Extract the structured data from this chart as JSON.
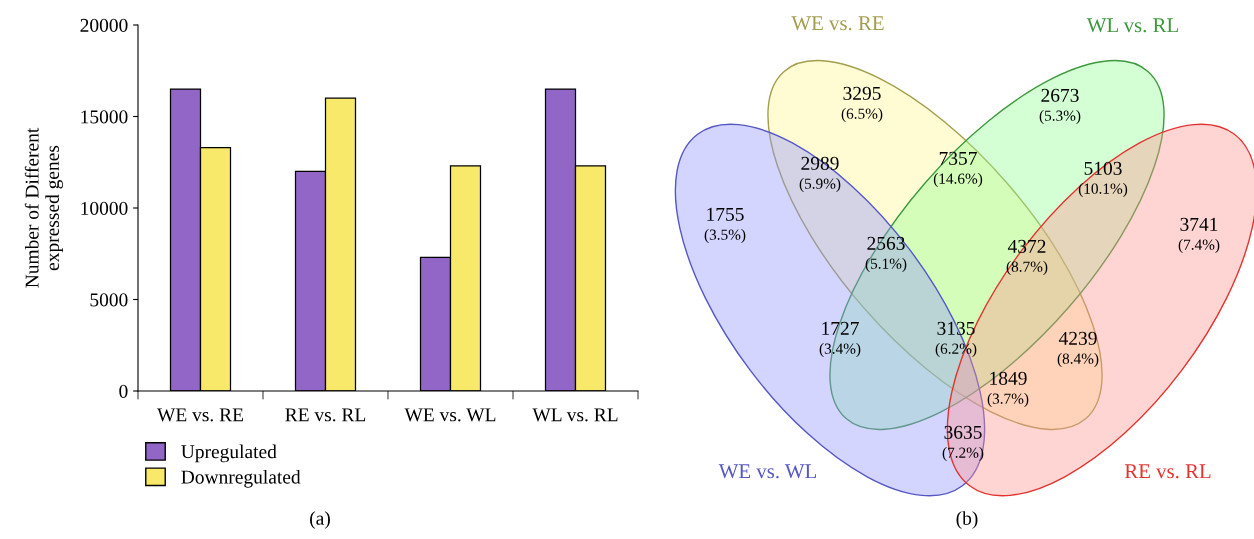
{
  "chart_data": [
    {
      "type": "bar",
      "ylabel": "Number of Different\nexpressed genes",
      "categories": [
        "WE vs. RE",
        "RE vs. RL",
        "WE vs. WL",
        "WL vs. RL"
      ],
      "series": [
        {
          "name": "Upregulated",
          "color": "#9166c6",
          "values": [
            16500,
            12000,
            7300,
            16500
          ]
        },
        {
          "name": "Downregulated",
          "color": "#f8e96a",
          "values": [
            13300,
            16000,
            12300,
            12300
          ]
        }
      ],
      "ylim": [
        0,
        20000
      ],
      "yticks": [
        0,
        5000,
        10000,
        15000,
        20000
      ],
      "grid": false,
      "legend": "bottom left",
      "annotations": [
        "(a)"
      ]
    },
    {
      "type": "other",
      "series": [
        {
          "name": "WE vs. RE",
          "color": "#a39d4e"
        },
        {
          "name": "WL vs. RL",
          "color": "#3d983d"
        },
        {
          "name": "WE vs. WL",
          "color": "#5557c2"
        },
        {
          "name": "RE vs. RL",
          "color": "#e2342f"
        }
      ],
      "annotations": [
        "3295",
        "(6.5%)",
        "2673",
        "(5.3%)",
        "2989",
        "(5.9%)",
        "7357",
        "(14.6%)",
        "5103",
        "(10.1%)",
        "1755",
        "(3.5%)",
        "3741",
        "(7.4%)",
        "2563",
        "(5.1%)",
        "4372",
        "(8.7%)",
        "1727",
        "(3.4%)",
        "3135",
        "(6.2%)",
        "4239",
        "(8.4%)",
        "1849",
        "(3.7%)",
        "3635",
        "(7.2%)",
        "(b)"
      ]
    }
  ]
}
